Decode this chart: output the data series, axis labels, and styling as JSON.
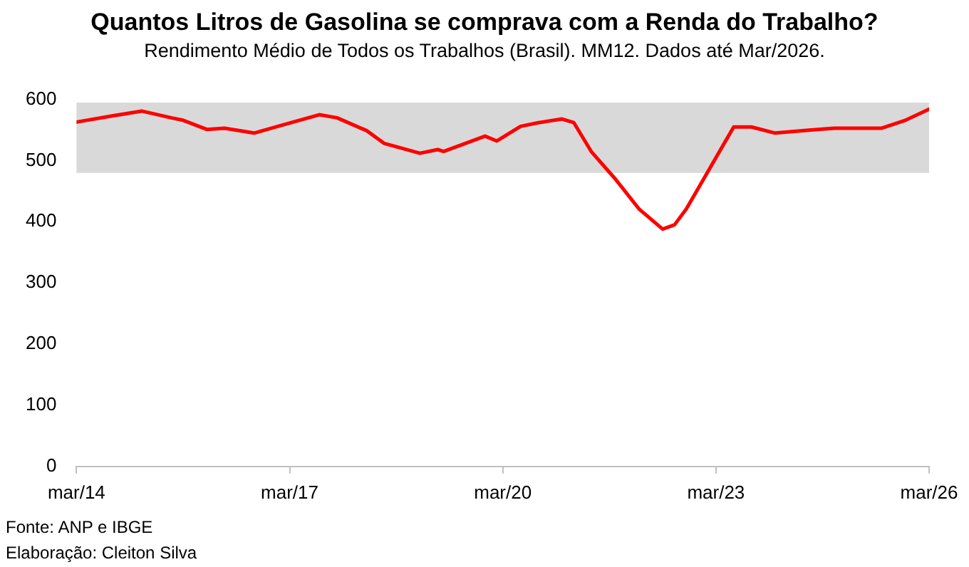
{
  "chart_data": {
    "type": "line",
    "title": "Quantos Litros de Gasolina se comprava com a Renda do Trabalho?",
    "subtitle": "Rendimento Médio de Todos os Trabalhos (Brasil). MM12. Dados até Mar/2026.",
    "x": [
      "2014-03",
      "2014-09",
      "2015-02",
      "2015-07",
      "2015-09",
      "2016-01",
      "2016-04",
      "2016-09",
      "2017-01",
      "2017-08",
      "2017-11",
      "2018-04",
      "2018-07",
      "2019-01",
      "2019-04",
      "2019-05",
      "2019-12",
      "2020-02",
      "2020-06",
      "2020-09",
      "2021-01",
      "2021-03",
      "2021-06",
      "2021-10",
      "2022-02",
      "2022-06",
      "2022-08",
      "2022-10",
      "2023-02",
      "2023-06",
      "2023-09",
      "2024-01",
      "2024-07",
      "2024-11",
      "2025-07",
      "2025-11",
      "2026-03"
    ],
    "series": [
      {
        "color": "#ff0000",
        "values": [
          563,
          573,
          581,
          570,
          566,
          551,
          553,
          545,
          556,
          575,
          570,
          549,
          528,
          512,
          518,
          515,
          540,
          532,
          556,
          562,
          568,
          562,
          514,
          470,
          421,
          388,
          395,
          421,
          488,
          555,
          555,
          545,
          550,
          553,
          553,
          566,
          584
        ]
      }
    ],
    "xlim": [
      "2014-03",
      "2026-03"
    ],
    "xticks": [
      {
        "value": "2014-03",
        "label": "mar/14"
      },
      {
        "value": "2017-03",
        "label": "mar/17"
      },
      {
        "value": "2020-03",
        "label": "mar/20"
      },
      {
        "value": "2023-03",
        "label": "mar/23"
      },
      {
        "value": "2026-03",
        "label": "mar/26"
      }
    ],
    "ylim": [
      0,
      600
    ],
    "yticks": [
      0,
      100,
      200,
      300,
      400,
      500,
      600
    ],
    "bands": [
      {
        "axis": "y",
        "from": 480,
        "to": 595,
        "color": "#d9d9d9"
      }
    ],
    "grid": false,
    "legend": false,
    "marker": "none",
    "line_style": "solid",
    "annotations": [
      "Fonte: ANP e IBGE",
      "Elaboração: Cleiton Silva"
    ]
  }
}
